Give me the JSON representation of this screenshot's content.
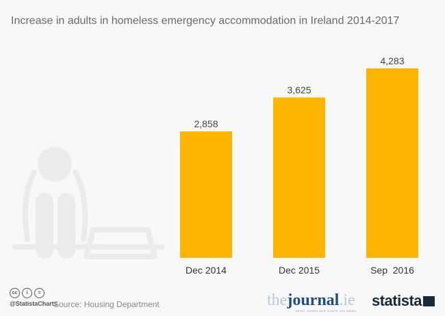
{
  "title": "Increase in adults in homeless emergency accommodation in Ireland 2014-2017",
  "chart_data": {
    "type": "bar",
    "title": "Increase in adults in homeless emergency accommodation in Ireland 2014-2017",
    "categories": [
      "Dec 2014",
      "Dec 2015",
      "Sep  2016"
    ],
    "values": [
      2858,
      3625,
      4283
    ],
    "labels": [
      "2,858",
      "3,625",
      "4,283"
    ],
    "ylim": [
      0,
      4283
    ],
    "grid": false,
    "bar_color": "#ffb400"
  },
  "footer": {
    "handle": "@StatistaCharts",
    "source": "Source: Housing Department",
    "cc_icons": [
      "cc-icon",
      "attribution-icon",
      "no-derivatives-icon"
    ],
    "cc_labels": [
      "cc",
      "i",
      "="
    ],
    "partner_logo": "thejournal.ie",
    "partner_tagline": "READ, SHARE AND SHAPE THE NEWS",
    "brand_logo": "statista"
  }
}
